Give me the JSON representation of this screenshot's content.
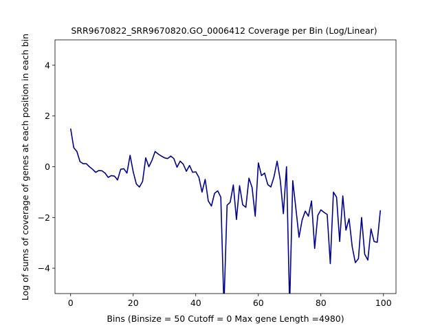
{
  "chart_data": {
    "type": "line",
    "title": "SRR9670822_SRR9670820.GO_0006412 Coverage per Bin (Log/Linear)",
    "xlabel": "Bins  (Binsize = 50 Cutoff = 0 Max gene Length =4980)",
    "ylabel": "Log of sums of coverage of genes at each position in each bin",
    "xlim": [
      -5,
      104
    ],
    "ylim": [
      -5,
      5
    ],
    "xticks": [
      0,
      20,
      40,
      60,
      80,
      100
    ],
    "yticks": [
      -4,
      -2,
      0,
      2,
      4
    ],
    "grid": false,
    "line_color": "#00008b",
    "series": [
      {
        "x": [
          0,
          1,
          2,
          3,
          4,
          5,
          6,
          7,
          8,
          9,
          10,
          11,
          12,
          13,
          14,
          15,
          16,
          17,
          18,
          19,
          20,
          21,
          22,
          23,
          24,
          25,
          26,
          27,
          28,
          29,
          30,
          31,
          32,
          33,
          34,
          35,
          36,
          37,
          38,
          39,
          40,
          41,
          42,
          43,
          44,
          45,
          46,
          47,
          48,
          49,
          50,
          51,
          52,
          53,
          54,
          55,
          56,
          57,
          58,
          59,
          60,
          61,
          62,
          63,
          64,
          65,
          66,
          67,
          68,
          69,
          70,
          71,
          72,
          73,
          74,
          75,
          76,
          77,
          78,
          79,
          80,
          81,
          82,
          83,
          84,
          85,
          86,
          87,
          88,
          89,
          90,
          91,
          92,
          93,
          94,
          95,
          96,
          97,
          98,
          99
        ],
        "y": [
          1.5,
          0.75,
          0.6,
          0.2,
          0.12,
          0.12,
          0.0,
          -0.1,
          -0.22,
          -0.15,
          -0.16,
          -0.25,
          -0.42,
          -0.35,
          -0.37,
          -0.52,
          -0.1,
          -0.08,
          -0.25,
          0.45,
          -0.2,
          -0.68,
          -0.8,
          -0.58,
          0.35,
          0.0,
          0.25,
          0.6,
          0.5,
          0.42,
          0.35,
          0.32,
          0.42,
          0.32,
          -0.02,
          0.22,
          0.1,
          -0.18,
          0.05,
          -0.22,
          -0.2,
          -0.42,
          -1.0,
          -0.5,
          -1.35,
          -1.55,
          -1.05,
          -0.95,
          -1.2,
          -5.5,
          -1.52,
          -1.4,
          -0.72,
          -2.08,
          -0.75,
          -1.5,
          -1.6,
          -0.45,
          -0.82,
          -1.95,
          0.15,
          -0.35,
          -0.25,
          -0.7,
          -0.8,
          -0.4,
          0.22,
          -0.52,
          -1.85,
          0.0,
          -5.5,
          -0.55,
          -1.65,
          -2.78,
          -2.1,
          -1.75,
          -1.95,
          -1.35,
          -3.22,
          -1.92,
          -1.7,
          -1.8,
          -1.88,
          -3.82,
          -1.0,
          -1.2,
          -2.95,
          -1.15,
          -2.5,
          -2.05,
          -3.15,
          -3.78,
          -3.62,
          -2.0,
          -3.45,
          -3.68,
          -2.45,
          -2.95,
          -2.98,
          -1.72
        ]
      }
    ]
  }
}
